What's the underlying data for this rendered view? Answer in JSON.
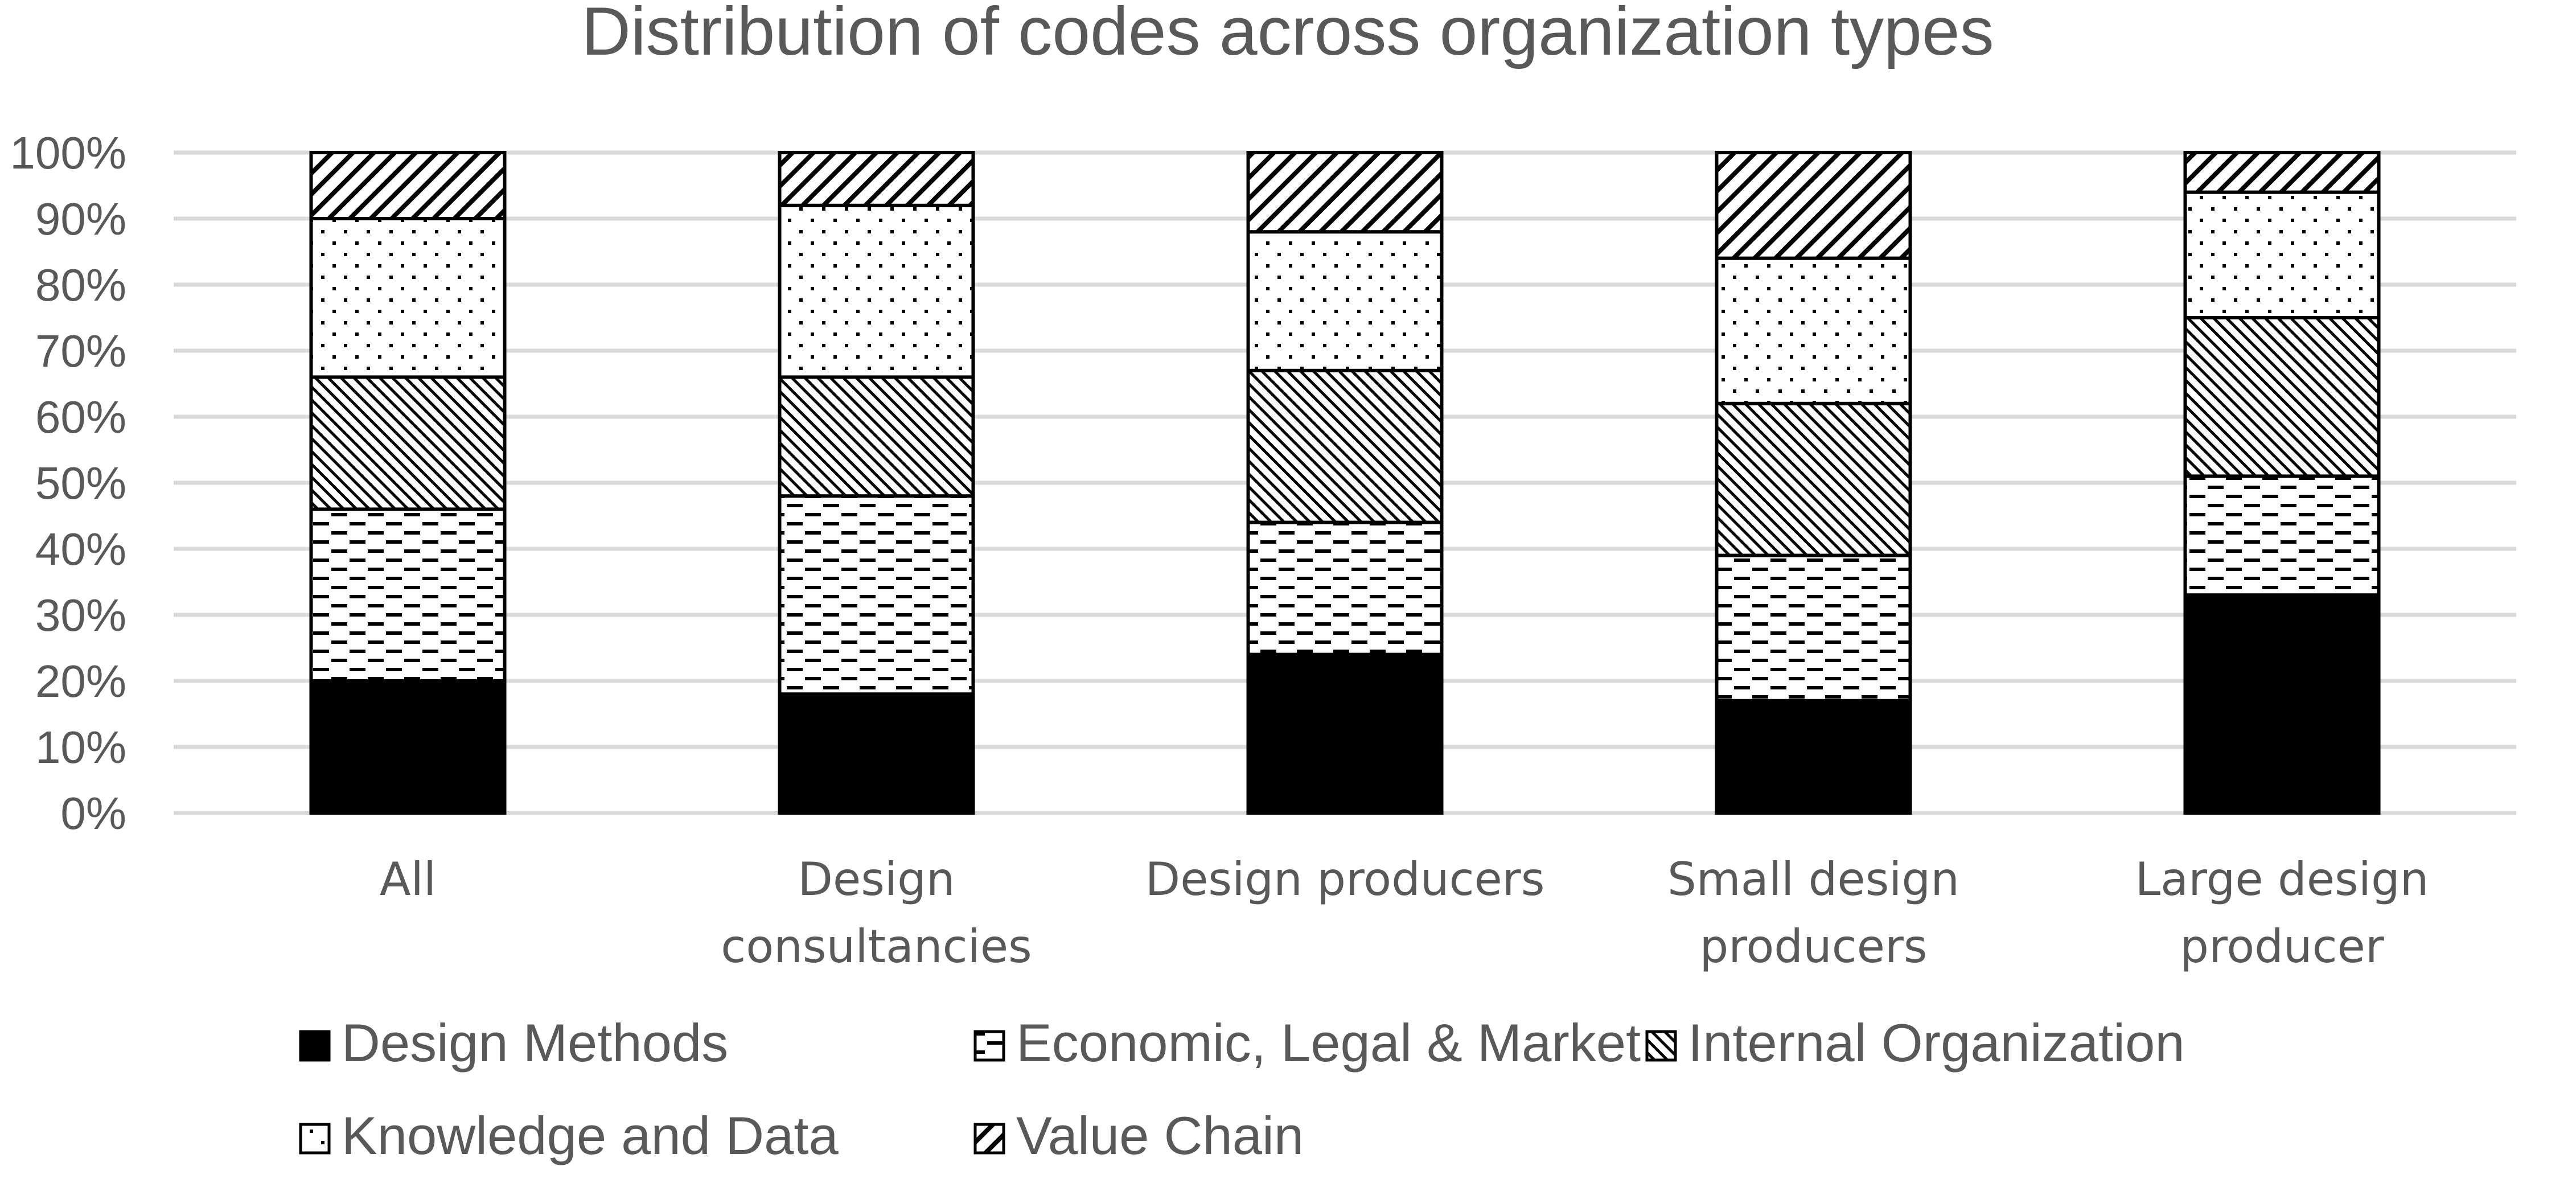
{
  "chart_data": {
    "type": "bar",
    "stacked": true,
    "title": "Distribution of codes across organization types",
    "xlabel": "",
    "ylabel": "",
    "ylim": [
      0,
      100
    ],
    "y_ticks": [
      "0%",
      "10%",
      "20%",
      "30%",
      "40%",
      "50%",
      "60%",
      "70%",
      "80%",
      "90%",
      "100%"
    ],
    "grid": true,
    "legend_position": "bottom",
    "categories": [
      [
        "All"
      ],
      [
        "Design",
        "consultancies"
      ],
      [
        "Design producers"
      ],
      [
        "Small design",
        "producers"
      ],
      [
        "Large design",
        "producer"
      ]
    ],
    "series": [
      {
        "name": "Design Methods",
        "pattern": "solid-black",
        "values": [
          20,
          18,
          24,
          17,
          33
        ]
      },
      {
        "name": "Economic, Legal & Market",
        "pattern": "dashes",
        "values": [
          26,
          30,
          20,
          22,
          18
        ]
      },
      {
        "name": "Internal Organization",
        "pattern": "dense-diagonal",
        "values": [
          20,
          18,
          23,
          23,
          24
        ]
      },
      {
        "name": "Knowledge and Data",
        "pattern": "dots",
        "values": [
          24,
          26,
          21,
          22,
          19
        ]
      },
      {
        "name": "Value Chain",
        "pattern": "wide-diagonal",
        "values": [
          10,
          8,
          12,
          16,
          6
        ]
      }
    ],
    "colors": {
      "text": "#595959",
      "grid": "#d9d9d9",
      "fill": "#000000",
      "background": "#ffffff"
    }
  }
}
